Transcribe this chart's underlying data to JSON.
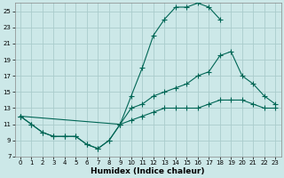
{
  "xlabel": "Humidex (Indice chaleur)",
  "bg_color": "#cce8e8",
  "grid_color": "#aacccc",
  "line_color": "#006655",
  "line1_x": [
    0,
    1,
    2,
    3,
    4,
    5,
    6,
    7,
    8,
    9,
    10,
    11,
    12,
    13,
    14,
    15,
    16,
    17,
    18
  ],
  "line1_y": [
    12,
    11,
    10,
    9.5,
    9.5,
    9.5,
    8.5,
    8,
    9,
    11,
    14.5,
    18,
    22,
    24,
    25.5,
    25.5,
    26,
    25.5,
    24
  ],
  "line2_x": [
    0,
    1,
    2,
    3,
    4,
    5,
    6,
    7,
    8,
    9,
    10,
    11,
    12,
    13,
    14,
    15,
    16,
    17,
    18,
    19,
    20,
    21,
    22,
    23
  ],
  "line2_y": [
    12,
    11,
    10,
    9.5,
    9.5,
    9.5,
    8.5,
    8,
    9,
    11,
    13,
    13.5,
    14.5,
    15,
    15.5,
    16,
    17,
    17.5,
    19.5,
    20,
    17,
    16,
    14.5,
    13.5
  ],
  "line3_x": [
    0,
    9,
    10,
    11,
    12,
    13,
    14,
    15,
    16,
    17,
    18,
    19,
    20,
    21,
    22,
    23
  ],
  "line3_y": [
    12,
    11,
    11.5,
    12,
    12.5,
    13,
    13,
    13,
    13,
    13.5,
    14,
    14,
    14,
    13.5,
    13,
    13
  ],
  "xlim": [
    -0.5,
    23.5
  ],
  "ylim": [
    7,
    26
  ],
  "yticks": [
    7,
    9,
    11,
    13,
    15,
    17,
    19,
    21,
    23,
    25
  ],
  "xticks": [
    0,
    1,
    2,
    3,
    4,
    5,
    6,
    7,
    8,
    9,
    10,
    11,
    12,
    13,
    14,
    15,
    16,
    17,
    18,
    19,
    20,
    21,
    22,
    23
  ],
  "xlabel_fontsize": 6.5,
  "tick_fontsize": 5
}
